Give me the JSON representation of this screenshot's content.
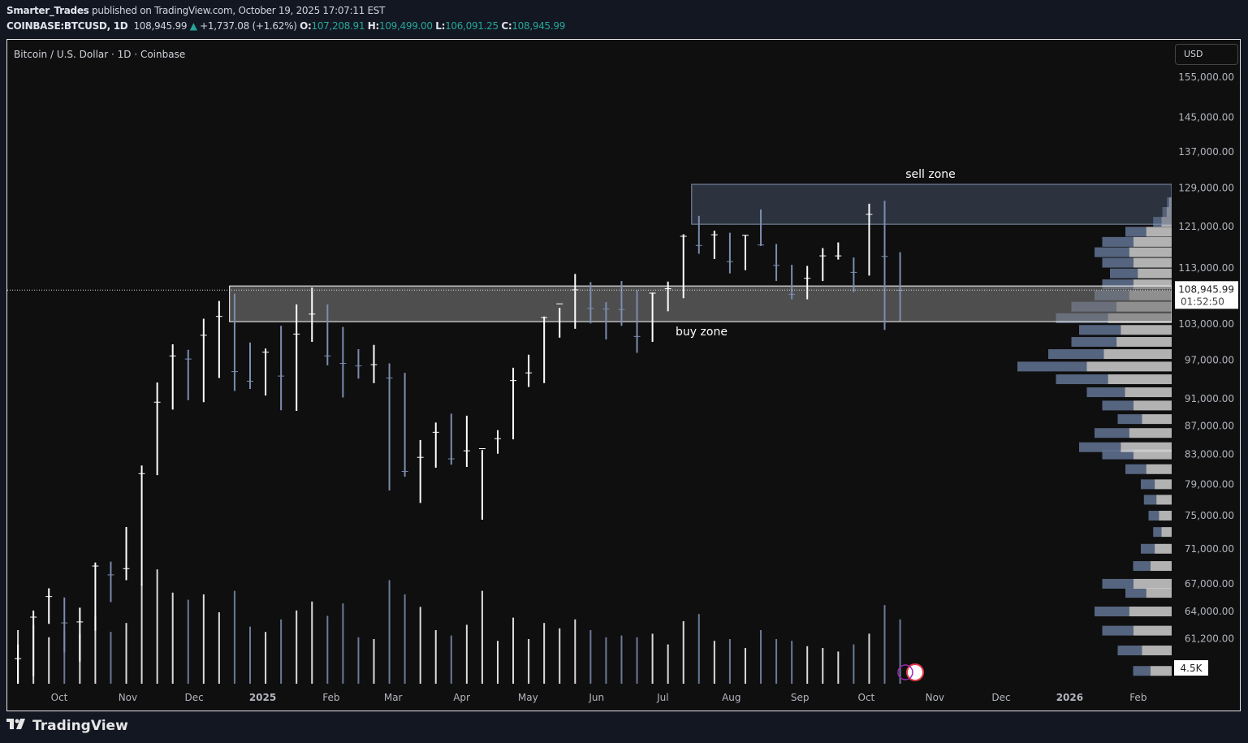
{
  "header": {
    "author": "Smarter_Trades",
    "published": " published on TradingView.com, October 19, 2025 17:07:11 EST",
    "symbol": "COINBASE:BTCUSD, 1D",
    "last": "108,945.99",
    "change": "+1,737.08 (+1.62%)",
    "o_label": "O:",
    "o": "107,208.91",
    "h_label": "H:",
    "h": "109,499.00",
    "l_label": "L:",
    "l": "106,091.25",
    "c_label": "C:",
    "c": "108,945.99"
  },
  "chart_title": "Bitcoin / U.S. Dollar · 1D · Coinbase",
  "currency": "USD",
  "footer_brand": "TradingView",
  "colors": {
    "up": "#ffffff",
    "down": "#7b8db0",
    "accent": "#26a69a",
    "background": "#0f0f0f"
  },
  "chart_data": {
    "type": "ohlc-bars",
    "scale": "log",
    "grid": false,
    "price_ticks": [
      "155,000.00",
      "145,000.00",
      "137,000.00",
      "129,000.00",
      "121,000.00",
      "113,000.00",
      "103,000.00",
      "97,000.00",
      "91,000.00",
      "87,000.00",
      "83,000.00",
      "79,000.00",
      "75,000.00",
      "71,000.00",
      "67,000.00",
      "64,000.00",
      "61,200.00"
    ],
    "time_ticks": [
      {
        "label": "Oct",
        "date": "2024-10-01"
      },
      {
        "label": "Nov",
        "date": "2024-11-01"
      },
      {
        "label": "Dec",
        "date": "2024-12-01"
      },
      {
        "label": "2025",
        "date": "2025-01-01",
        "bold": true
      },
      {
        "label": "Feb",
        "date": "2025-02-01"
      },
      {
        "label": "Mar",
        "date": "2025-03-01"
      },
      {
        "label": "Apr",
        "date": "2025-04-01"
      },
      {
        "label": "May",
        "date": "2025-05-01"
      },
      {
        "label": "Jun",
        "date": "2025-06-01"
      },
      {
        "label": "Jul",
        "date": "2025-07-01"
      },
      {
        "label": "Aug",
        "date": "2025-08-01"
      },
      {
        "label": "Sep",
        "date": "2025-09-01"
      },
      {
        "label": "Oct",
        "date": "2025-10-01"
      },
      {
        "label": "Nov",
        "date": "2025-11-01"
      },
      {
        "label": "Dec",
        "date": "2025-12-01"
      },
      {
        "label": "2026",
        "date": "2026-01-01",
        "bold": true
      },
      {
        "label": "Feb",
        "date": "2026-02-01"
      }
    ],
    "last_price": {
      "value": 108945.99,
      "label": "108,945.99",
      "countdown": "01:52:50"
    },
    "volume_label": "4.5K",
    "weekly": [
      [
        "2024-08-12",
        61.8,
        57.0,
        59.0,
        3.0
      ],
      [
        "2024-08-19",
        65.0,
        58.0,
        64.0,
        3.2
      ],
      [
        "2024-08-26",
        64.5,
        57.2,
        57.3,
        3.5
      ],
      [
        "2024-09-02",
        59.8,
        52.6,
        54.8,
        3.6
      ],
      [
        "2024-09-09",
        60.6,
        54.6,
        59.2,
        3.0
      ],
      [
        "2024-09-16",
        64.1,
        57.5,
        63.4,
        3.3
      ],
      [
        "2024-09-23",
        66.5,
        62.7,
        65.6,
        2.6
      ],
      [
        "2024-09-30",
        65.5,
        59.8,
        62.8,
        3.0
      ],
      [
        "2024-10-07",
        64.4,
        58.9,
        62.9,
        2.8
      ],
      [
        "2024-10-14",
        69.4,
        62.0,
        69.0,
        3.8
      ],
      [
        "2024-10-21",
        69.5,
        65.0,
        68.0,
        2.9
      ],
      [
        "2024-10-28",
        73.6,
        67.4,
        68.7,
        3.4
      ],
      [
        "2024-11-04",
        81.5,
        66.8,
        80.4,
        5.6
      ],
      [
        "2024-11-11",
        93.5,
        80.2,
        90.5,
        6.4
      ],
      [
        "2024-11-18",
        99.6,
        89.4,
        97.7,
        5.1
      ],
      [
        "2024-11-25",
        98.7,
        90.8,
        97.2,
        4.7
      ],
      [
        "2024-12-02",
        103.9,
        90.5,
        101.1,
        5.0
      ],
      [
        "2024-12-09",
        107.0,
        94.2,
        104.3,
        4.0
      ],
      [
        "2024-12-16",
        108.3,
        92.2,
        95.2,
        5.2
      ],
      [
        "2024-12-23",
        99.9,
        92.5,
        93.7,
        3.2
      ],
      [
        "2024-12-30",
        98.9,
        91.5,
        98.3,
        2.9
      ],
      [
        "2025-01-06",
        102.7,
        89.3,
        94.5,
        3.6
      ],
      [
        "2025-01-13",
        106.4,
        89.2,
        101.3,
        4.1
      ],
      [
        "2025-01-20",
        109.4,
        100.0,
        104.7,
        4.6
      ],
      [
        "2025-01-27",
        106.4,
        96.2,
        97.7,
        3.8
      ],
      [
        "2025-02-03",
        102.5,
        91.2,
        96.5,
        4.5
      ],
      [
        "2025-02-10",
        98.8,
        94.1,
        96.1,
        2.6
      ],
      [
        "2025-02-17",
        99.5,
        93.4,
        96.3,
        2.5
      ],
      [
        "2025-02-24",
        96.5,
        78.2,
        94.2,
        5.8
      ],
      [
        "2025-03-03",
        95.0,
        80.0,
        80.7,
        5.0
      ],
      [
        "2025-03-10",
        85.0,
        76.6,
        82.6,
        4.3
      ],
      [
        "2025-03-17",
        87.5,
        81.2,
        86.1,
        3.0
      ],
      [
        "2025-03-24",
        88.8,
        81.6,
        82.4,
        2.7
      ],
      [
        "2025-03-31",
        88.5,
        81.3,
        83.5,
        3.3
      ],
      [
        "2025-04-07",
        83.6,
        74.5,
        83.8,
        5.2
      ],
      [
        "2025-04-14",
        86.4,
        83.1,
        85.2,
        2.4
      ],
      [
        "2025-04-21",
        95.8,
        85.1,
        93.8,
        3.7
      ],
      [
        "2025-04-28",
        97.9,
        92.8,
        95.0,
        2.5
      ],
      [
        "2025-05-05",
        104.3,
        93.4,
        104.1,
        3.4
      ],
      [
        "2025-05-12",
        105.8,
        100.7,
        106.5,
        3.1
      ],
      [
        "2025-05-19",
        111.9,
        102.2,
        109.0,
        3.6
      ],
      [
        "2025-05-26",
        110.4,
        103.1,
        105.7,
        3.0
      ],
      [
        "2025-06-02",
        106.8,
        100.4,
        105.6,
        2.6
      ],
      [
        "2025-06-09",
        110.6,
        102.7,
        105.5,
        2.7
      ],
      [
        "2025-06-16",
        108.9,
        98.2,
        100.9,
        2.6
      ],
      [
        "2025-06-23",
        108.5,
        100.0,
        108.4,
        2.8
      ],
      [
        "2025-06-30",
        110.5,
        105.2,
        109.2,
        2.2
      ],
      [
        "2025-07-07",
        119.5,
        107.5,
        119.1,
        3.5
      ],
      [
        "2025-07-14",
        123.2,
        115.7,
        117.3,
        3.9
      ],
      [
        "2025-07-21",
        120.2,
        114.7,
        119.4,
        2.4
      ],
      [
        "2025-07-28",
        119.8,
        112.0,
        114.2,
        2.5
      ],
      [
        "2025-08-04",
        119.3,
        112.6,
        119.3,
        2.0
      ],
      [
        "2025-08-11",
        124.5,
        117.2,
        117.4,
        3.0
      ],
      [
        "2025-08-18",
        117.6,
        110.6,
        113.5,
        2.5
      ],
      [
        "2025-08-25",
        113.6,
        107.3,
        108.2,
        2.4
      ],
      [
        "2025-09-01",
        113.4,
        107.3,
        111.1,
        2.1
      ],
      [
        "2025-09-08",
        116.8,
        110.6,
        115.3,
        2.0
      ],
      [
        "2025-09-15",
        117.9,
        114.6,
        115.3,
        1.8
      ],
      [
        "2025-09-22",
        115.0,
        108.6,
        112.2,
        2.2
      ],
      [
        "2025-09-29",
        125.7,
        111.6,
        123.5,
        2.8
      ],
      [
        "2025-10-06",
        126.3,
        102.0,
        115.2,
        4.4
      ],
      [
        "2025-10-13",
        116.0,
        103.5,
        108.9,
        3.6
      ]
    ],
    "weekly_columns": [
      "week",
      "high_k",
      "low_k",
      "close_k",
      "volume_k"
    ],
    "zones": [
      {
        "label": "sell zone",
        "start": "2025-07-14",
        "top": 129800,
        "bottom": 121500
      },
      {
        "label": "buy zone",
        "start": "2024-12-17",
        "top": 109700,
        "bottom": 103400
      }
    ],
    "volume_profile": [
      [
        58,
        0.25
      ],
      [
        60,
        0.35
      ],
      [
        62,
        0.45
      ],
      [
        64,
        0.5
      ],
      [
        66,
        0.3
      ],
      [
        67,
        0.45
      ],
      [
        69,
        0.25
      ],
      [
        71,
        0.2
      ],
      [
        73,
        0.12
      ],
      [
        75,
        0.15
      ],
      [
        77,
        0.18
      ],
      [
        79,
        0.2
      ],
      [
        81,
        0.3
      ],
      [
        83,
        0.45
      ],
      [
        84,
        0.6
      ],
      [
        86,
        0.5
      ],
      [
        88,
        0.35
      ],
      [
        90,
        0.45
      ],
      [
        92,
        0.55
      ],
      [
        94,
        0.75
      ],
      [
        96,
        1.0
      ],
      [
        98,
        0.8
      ],
      [
        100,
        0.65
      ],
      [
        102,
        0.6
      ],
      [
        104,
        0.75
      ],
      [
        106,
        0.65
      ],
      [
        108,
        0.5
      ],
      [
        110,
        0.45
      ],
      [
        112,
        0.4
      ],
      [
        114,
        0.45
      ],
      [
        116,
        0.5
      ],
      [
        118,
        0.45
      ],
      [
        120,
        0.3
      ],
      [
        122,
        0.12
      ],
      [
        124,
        0.06
      ],
      [
        126,
        0.03
      ]
    ]
  }
}
